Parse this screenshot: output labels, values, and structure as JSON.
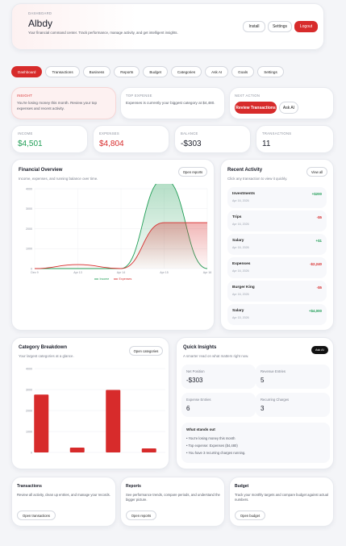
{
  "header": {
    "eyebrow": "DASHBOARD",
    "name": "Albdy",
    "tagline": "Your financial command center. Track performance, manage activity, and get intelligent insights.",
    "install_label": "Install",
    "settings_label": "Settings",
    "logout_label": "Logout"
  },
  "tabs": [
    "Dashboard",
    "Transactions",
    "Business",
    "Reports",
    "Budget",
    "Categories",
    "Ask AI",
    "Goals",
    "Settings"
  ],
  "insight": {
    "label": "INSIGHT",
    "text": "You're losing money this month. Review your top expenses and recent activity."
  },
  "top_expense": {
    "label": "TOP EXPENSE",
    "text": "Expenses is currently your biggest category at $4,480."
  },
  "next_action": {
    "label": "NEXT ACTION",
    "review_label": "Review Transactions",
    "ask_label": "Ask AI"
  },
  "stats": [
    {
      "label": "INCOME",
      "value": "$4,501",
      "color": "#1f9d55"
    },
    {
      "label": "EXPENSES",
      "value": "$4,804",
      "color": "#d72b2b"
    },
    {
      "label": "BALANCE",
      "value": "-$303",
      "color": "#1a1d29"
    },
    {
      "label": "TRANSACTIONS",
      "value": "11",
      "color": "#1a1d29"
    }
  ],
  "overview": {
    "title": "Financial Overview",
    "subtitle": "Income, expenses, and running balance over time.",
    "button": "Open reports"
  },
  "chart_data": [
    {
      "type": "area",
      "x": [
        "Dec 9",
        "Apr 13",
        "Apr 14",
        "Apr 15",
        "Apr 16"
      ],
      "yticks": [
        "0",
        "1000",
        "2000",
        "3000",
        "4000"
      ],
      "ylim": [
        0,
        4000
      ],
      "series": [
        {
          "name": "Income",
          "color": "#1f9d55",
          "values": [
            0,
            0,
            0,
            4500,
            0
          ]
        },
        {
          "name": "Expenses",
          "color": "#d72b2b",
          "values": [
            0,
            200,
            0,
            2300,
            2300
          ]
        }
      ]
    },
    {
      "type": "bar",
      "yticks": [
        "0",
        "1000",
        "2000",
        "3000",
        "4000"
      ],
      "ylim": [
        0,
        4000
      ],
      "values": [
        2760,
        230,
        2980,
        190
      ],
      "color": "#d72b2b"
    }
  ],
  "activity": {
    "title": "Recent Activity",
    "subtitle": "Click any transaction to view it quickly.",
    "button": "View all",
    "items": [
      {
        "name": "Investments",
        "date": "Apr 16, 2026",
        "amount": "+$200",
        "color": "#1f9d55"
      },
      {
        "name": "Trips",
        "date": "Apr 16, 2026",
        "amount": "-$5",
        "color": "#d72b2b"
      },
      {
        "name": "Salary",
        "date": "Apr 16, 2026",
        "amount": "+$1",
        "color": "#1f9d55"
      },
      {
        "name": "Expenses",
        "date": "Apr 16, 2026",
        "amount": "-$2,240",
        "color": "#d72b2b"
      },
      {
        "name": "Burger King",
        "date": "Apr 16, 2026",
        "amount": "-$5",
        "color": "#d72b2b"
      },
      {
        "name": "Salary",
        "date": "Apr 15, 2026",
        "amount": "+$4,000",
        "color": "#1f9d55"
      }
    ]
  },
  "category": {
    "title": "Category Breakdown",
    "subtitle": "Your largest categories at a glance.",
    "button": "Open categories"
  },
  "quick": {
    "title": "Quick Insights",
    "subtitle": "A smarter read on what matters right now.",
    "badge": "Ask AI",
    "boxes": [
      {
        "label": "Net Position",
        "value": "-$303"
      },
      {
        "label": "Revenue Entries",
        "value": "5"
      },
      {
        "label": "Expense Entries",
        "value": "6"
      },
      {
        "label": "Recurring Charges",
        "value": "3"
      }
    ],
    "stands_title": "What stands out",
    "stands": [
      "• You're losing money this month",
      "• Top expense: Expenses ($4,480)",
      "• You have 3 recurring charges running."
    ]
  },
  "bottom": [
    {
      "title": "Transactions",
      "text": "Review all activity, clean up entries, and manage your records.",
      "button": "Open transactions"
    },
    {
      "title": "Reports",
      "text": "See performance trends, compare periods, and understand the bigger picture.",
      "button": "Open reports"
    },
    {
      "title": "Budget",
      "text": "Track your monthly targets and compare budget against actual numbers.",
      "button": "Open budget"
    }
  ]
}
